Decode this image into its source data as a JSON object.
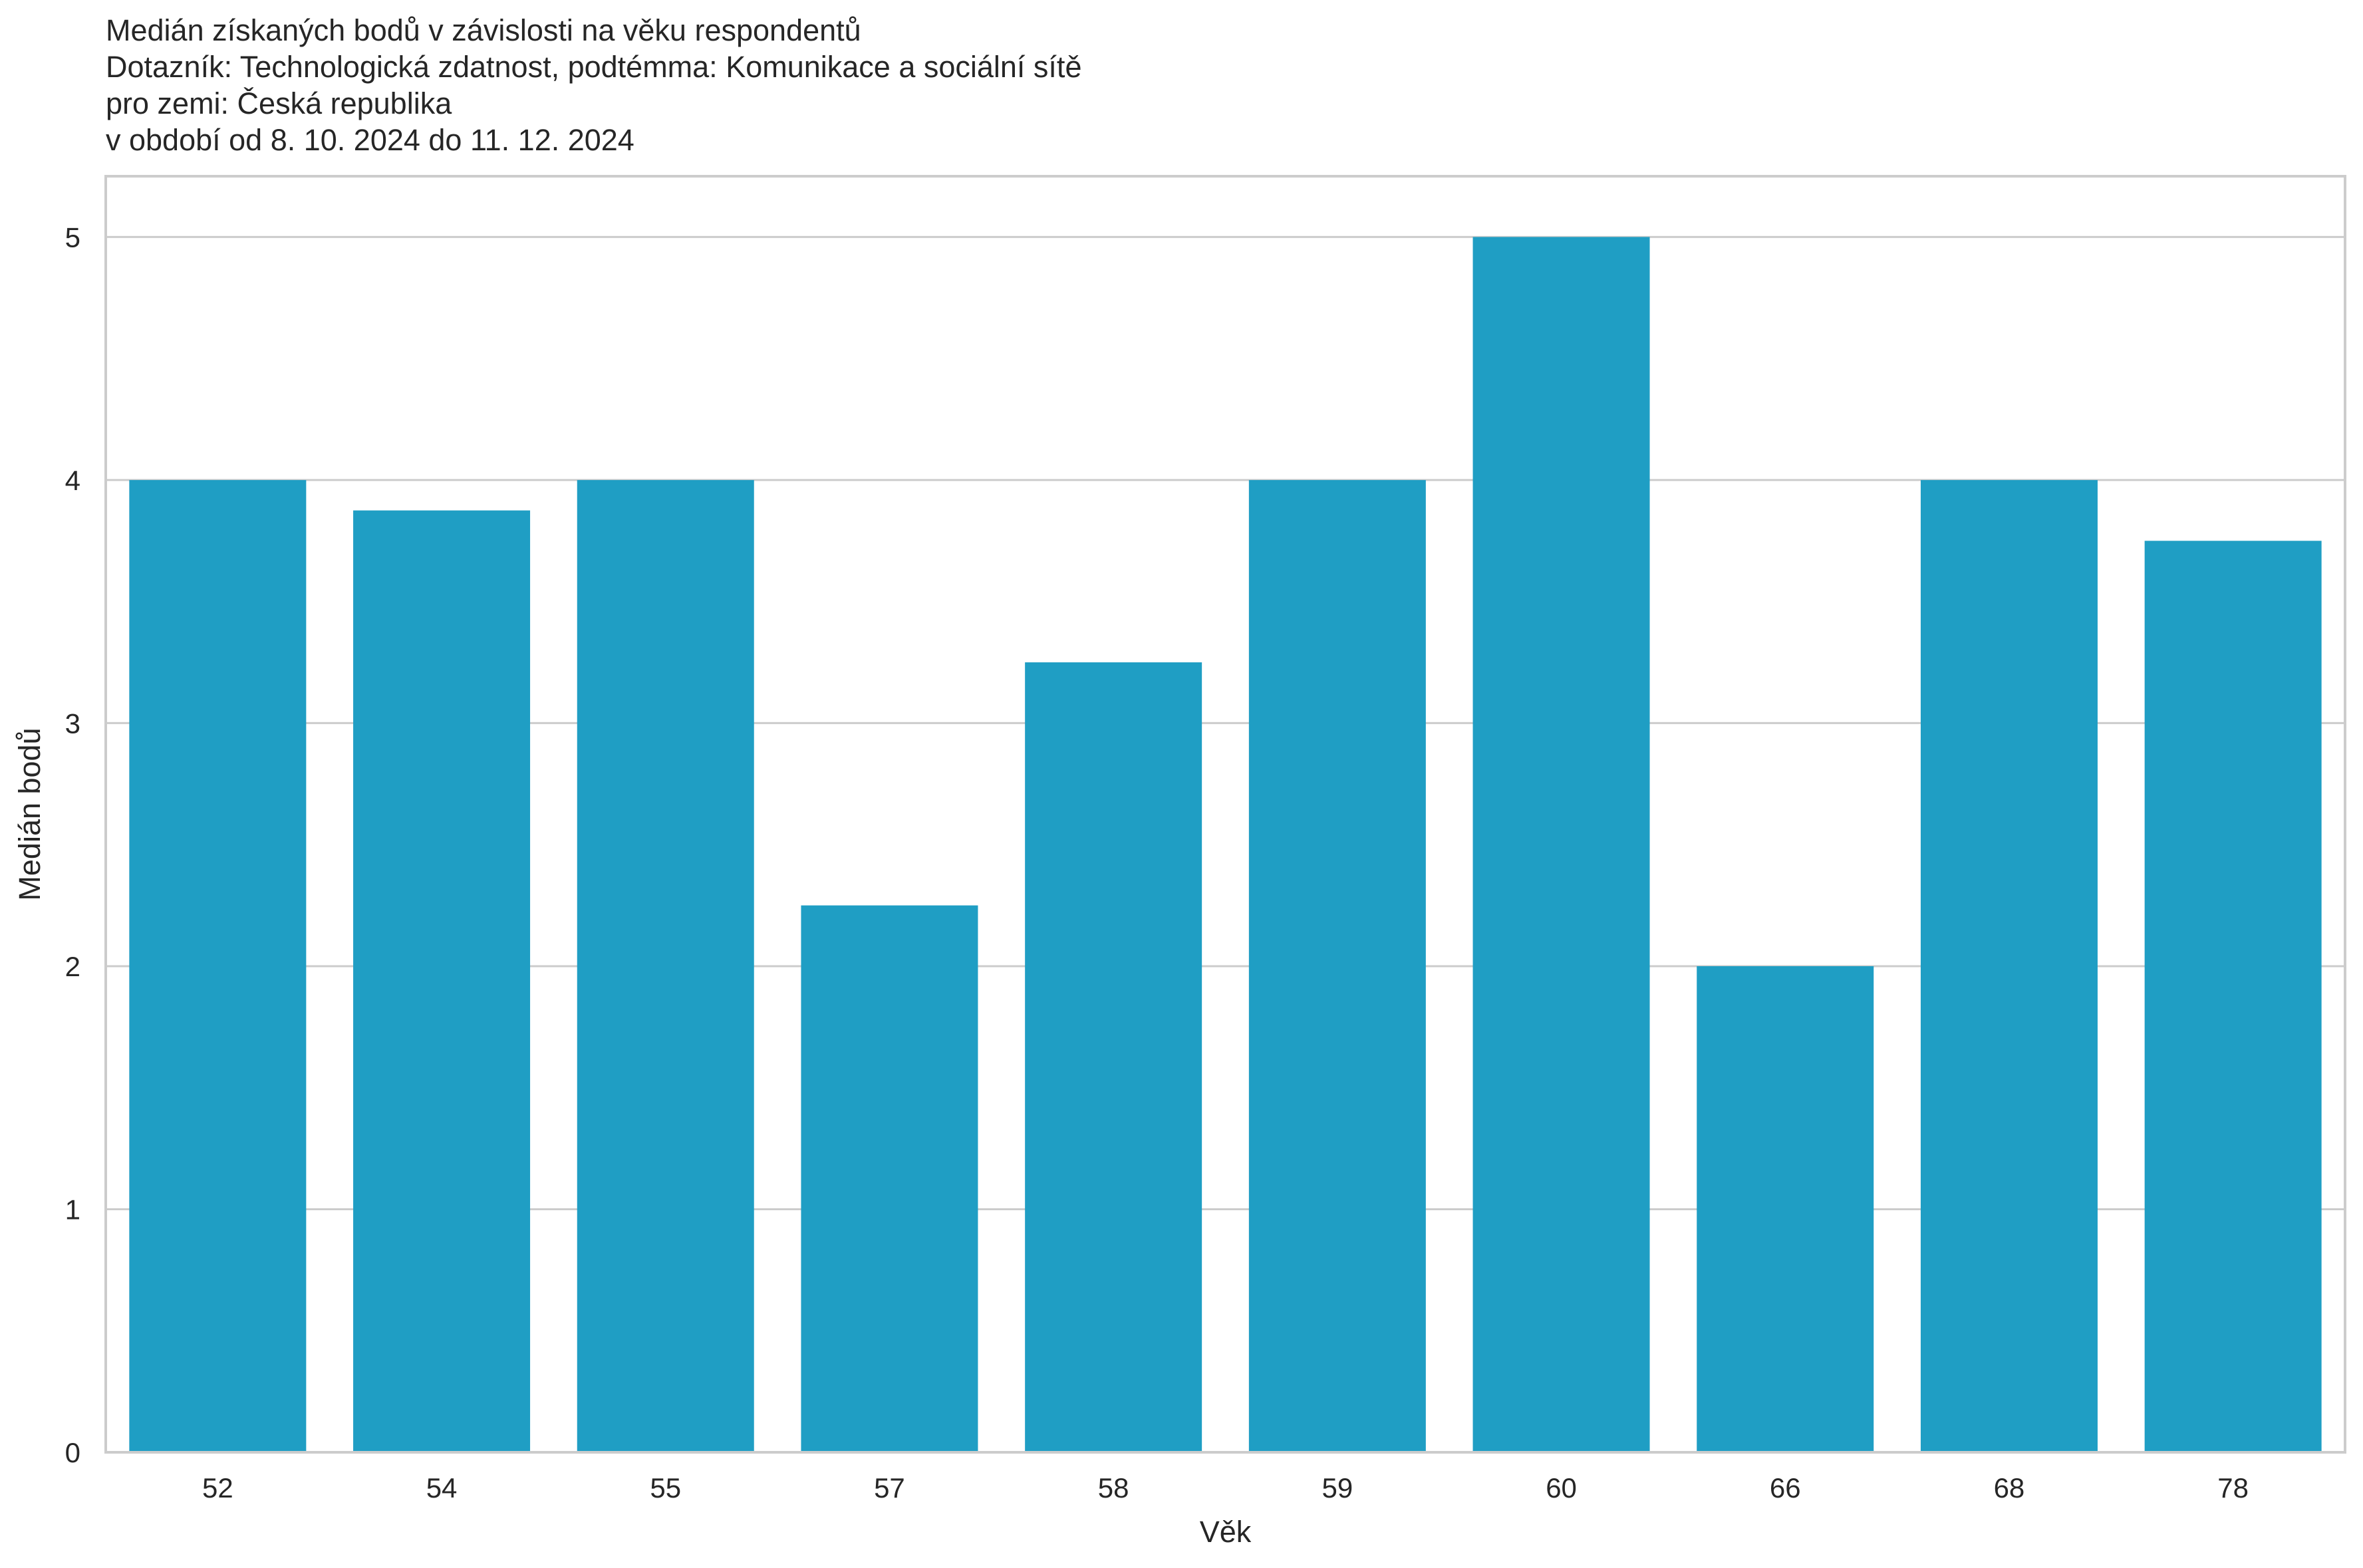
{
  "chart_data": {
    "type": "bar",
    "title_lines": [
      "Medián získaných bodů v závislosti na věku respondentů",
      "Dotazník: Technologická zdatnost, podtémma: Komunikace a sociální sítě",
      "pro zemi: Česká republika",
      "v období od 8. 10. 2024 do 11. 12. 2024"
    ],
    "xlabel": "Věk",
    "ylabel": "Medián bodů",
    "categories": [
      "52",
      "54",
      "55",
      "57",
      "58",
      "59",
      "60",
      "66",
      "68",
      "78"
    ],
    "values": [
      4.0,
      3.875,
      4.0,
      2.25,
      3.25,
      4.0,
      5.0,
      2.0,
      4.0,
      3.75
    ],
    "ylim": [
      0,
      5.25
    ],
    "yticks": [
      0,
      1,
      2,
      3,
      4,
      5
    ],
    "grid": "horizontal",
    "bar_color": "#1f9ec4",
    "legend": "none"
  }
}
